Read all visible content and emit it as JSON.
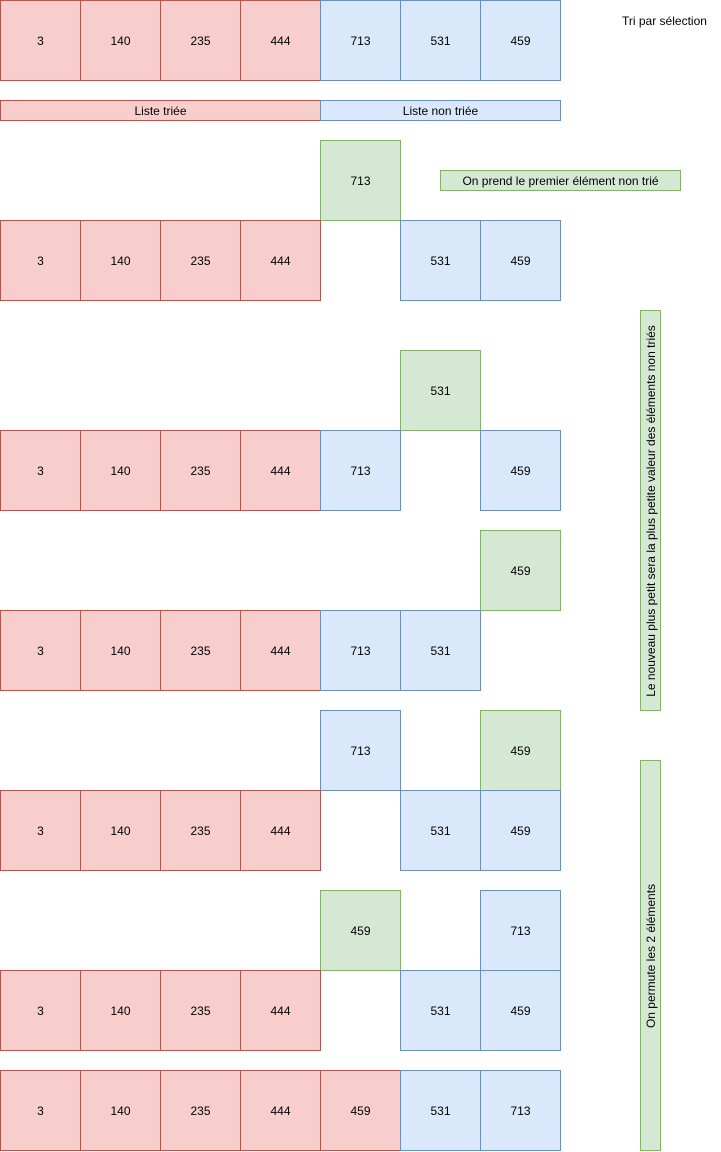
{
  "title": "Tri par sélection",
  "labels": {
    "sorted": "Liste triée",
    "unsorted": "Liste non triée",
    "step1": "On prend le premier élément non trié",
    "step2": "Le nouveau plus petit sera la plus petite valeur des éléments non triés",
    "step3": "On permute les 2 éléments"
  },
  "colors": {
    "sorted_fill": "#f8cecc",
    "sorted_stroke": "#b85450",
    "unsorted_fill": "#dae8fc",
    "unsorted_stroke": "#6c8ebf",
    "selected_fill": "#d5e8d4",
    "selected_stroke": "#82b366"
  },
  "rows": {
    "initial": [
      "3",
      "140",
      "235",
      "444",
      "713",
      "531",
      "459"
    ],
    "step1": {
      "picked": "713",
      "list": [
        "3",
        "140",
        "235",
        "444",
        "",
        "531",
        "459"
      ]
    },
    "step2a": {
      "picked": "531",
      "list": [
        "3",
        "140",
        "235",
        "444",
        "713",
        "",
        "459"
      ]
    },
    "step2b": {
      "picked": "459",
      "list": [
        "3",
        "140",
        "235",
        "444",
        "713",
        "531",
        ""
      ]
    },
    "step3a": {
      "top": [
        "713",
        "459"
      ],
      "list": [
        "3",
        "140",
        "235",
        "444",
        "",
        "531",
        "459"
      ]
    },
    "step3b": {
      "top": [
        "459",
        "713"
      ],
      "list": [
        "3",
        "140",
        "235",
        "444",
        "",
        "531",
        "459"
      ]
    },
    "final": [
      "3",
      "140",
      "235",
      "444",
      "459",
      "531",
      "713"
    ]
  }
}
